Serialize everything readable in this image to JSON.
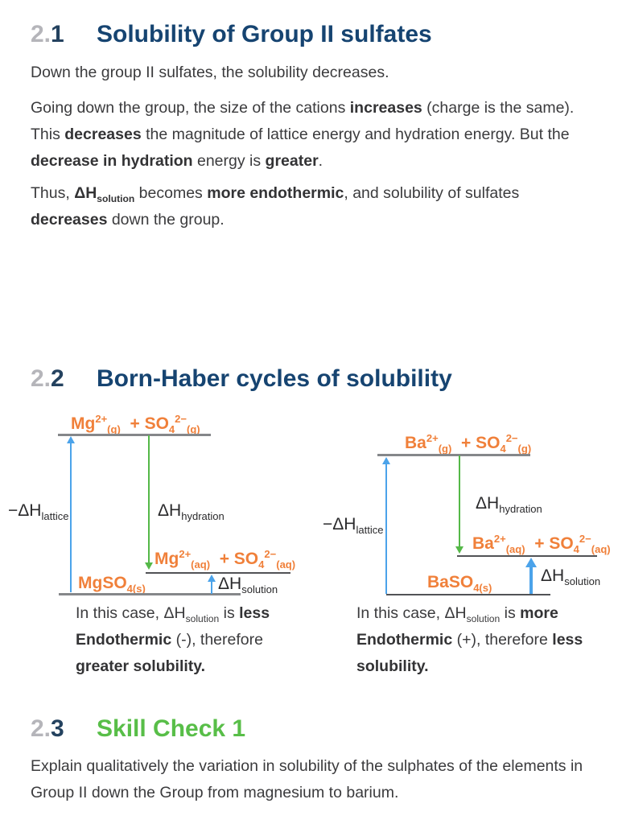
{
  "colors": {
    "heading_navy": "#164471",
    "section_number_gray": "#b5b5ba",
    "section_number_dark": "#24425f",
    "skill_check_green": "#58be48",
    "formula_orange": "#f0803a",
    "arrow_blue": "#4ba3ea",
    "arrow_green": "#55b848",
    "body_text": "#3b3b3d",
    "level_line_gray": "#85878a",
    "level_line_dark": "#515356"
  },
  "heading1": {
    "num_gray": "2.",
    "num_dark": "1",
    "title": "Solubility of Group II sulfates"
  },
  "heading2": {
    "num_gray": "2.",
    "num_dark": "2",
    "title": "Born-Haber cycles of solubility"
  },
  "heading3": {
    "num_gray": "2.",
    "num_dark": "3",
    "title": "Skill Check 1"
  },
  "paragraphs": {
    "p1": "Down the group II sulfates, the solubility decreases.",
    "p2_html": "Going down the group, the size of the cations <b>increases</b> (charge is the same). This <b>decreases</b> the magnitude of lattice energy and hydration energy. But the <b>decrease in hydration</b> energy is <b>greater</b>.",
    "p3_html": "Thus, <b>ΔH<sub>solution</sub></b> becomes <b>more endothermic</b>, and solubility of sulfates <b>decreases</b> down the group.",
    "p4": "Explain qualitatively the variation in solubility of the sulphates of the elements in Group II down the Group from magnesium to barium."
  },
  "diagram_left": {
    "compound": "MgSO4",
    "top_label_html": "Mg<sup>2+</sup><sub>(g)</sub>&nbsp; + SO<sub>4</sub><sup>2−</sup><sub>(g)</sub>",
    "lattice_label_html": "−ΔH<sub>lattice</sub>",
    "hydration_label_html": "ΔH<sub>hydration</sub>",
    "aq_label_html": "Mg<sup>2+</sup><sub>(aq)</sub>&nbsp; + SO<sub>4</sub><sup>2−</sup><sub>(aq)</sub>",
    "solid_label_html": "MgSO<sub>4(s)</sub>",
    "solution_arrow_glyph": "↑",
    "solution_label_html": "ΔH<sub>solution</sub>",
    "caption_html": "In this case, ΔH<sub>solution</sub> is <b>less</b><br><b>Endothermic</b> (-), therefore<br><b>greater solubility.</b>"
  },
  "diagram_right": {
    "compound": "BaSO4",
    "top_label_html": "Ba<sup>2+</sup><sub>(g)</sub>&nbsp; + SO<sub>4</sub><sup>2−</sup><sub>(g)</sub>",
    "lattice_label_html": "−ΔH<sub>lattice</sub>",
    "hydration_label_html": "ΔH<sub>hydration</sub>",
    "aq_label_html": "Ba<sup>2+</sup><sub>(aq)</sub>&nbsp; + SO<sub>4</sub><sup>2−</sup><sub>(aq)</sub>",
    "solid_label_html": "BaSO<sub>4(s)</sub>",
    "solution_label_html": "ΔH<sub>solution</sub>",
    "caption_html": "In this case, ΔH<sub>solution</sub> is <b>more</b><br><b>Endothermic</b> (+), therefore <b>less</b><br><b>solubility.</b>"
  }
}
